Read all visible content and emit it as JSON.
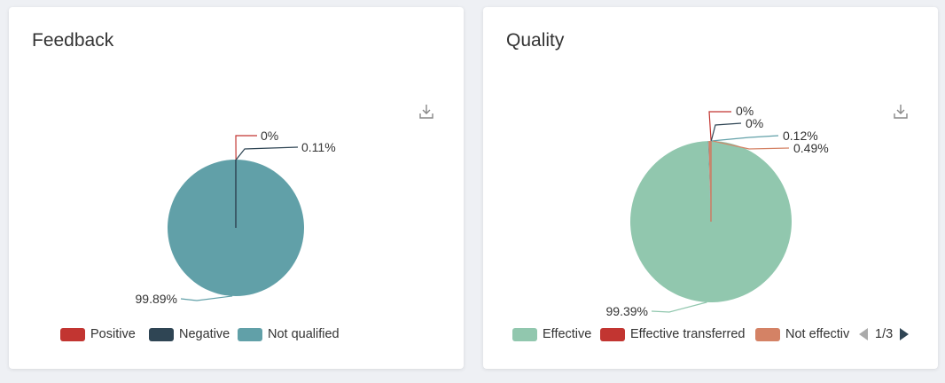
{
  "cards": {
    "feedback": {
      "title": "Feedback",
      "download_icon": "download-icon"
    },
    "quality": {
      "title": "Quality",
      "download_icon": "download-icon",
      "legend_page": "1/3",
      "legend_prev_icon": "triangle-left-icon",
      "legend_next_icon": "triangle-right-icon"
    }
  },
  "chart_data": [
    {
      "type": "pie",
      "title": "Feedback",
      "slices": [
        {
          "name": "Positive",
          "value": 0,
          "label": "0%",
          "color": "#c23531"
        },
        {
          "name": "Negative",
          "value": 0.11,
          "label": "0.11%",
          "color": "#2f4554"
        },
        {
          "name": "Not qualified",
          "value": 99.89,
          "label": "99.89%",
          "color": "#61a0a8"
        }
      ],
      "legend": [
        "Positive",
        "Negative",
        "Not qualified"
      ],
      "legend_position": "bottom"
    },
    {
      "type": "pie",
      "title": "Quality",
      "slices": [
        {
          "name": "Effective",
          "value": 99.39,
          "label": "99.39%",
          "color": "#91c7ae"
        },
        {
          "name": "Effective transferred",
          "value": 0,
          "label": "0%",
          "color": "#c23531"
        },
        {
          "name": "",
          "value": 0,
          "label": "0%",
          "color": "#2f4554"
        },
        {
          "name": "",
          "value": 0.12,
          "label": "0.12%",
          "color": "#61a0a8"
        },
        {
          "name": "Not effectiv",
          "value": 0.49,
          "label": "0.49%",
          "color": "#d48265"
        }
      ],
      "legend": [
        "Effective",
        "Effective transferred",
        "Not effectiv"
      ],
      "legend_position": "bottom"
    }
  ]
}
